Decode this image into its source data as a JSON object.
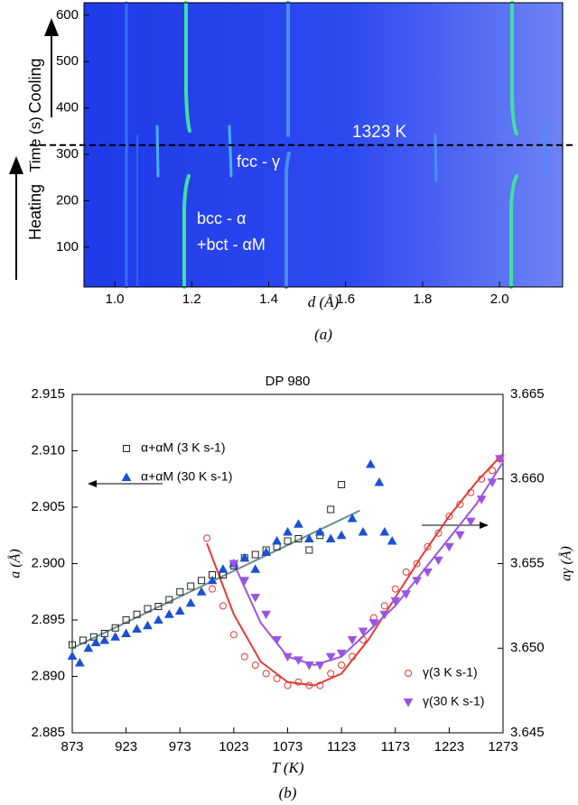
{
  "chart_data": [
    {
      "type": "image",
      "x_label": "d (Å)",
      "y_label": "Time (s)",
      "panel_label": "(a)",
      "xlim": [
        0.92,
        2.164
      ],
      "ylim": [
        14,
        627
      ],
      "xticks": [
        {
          "value": 1,
          "label": "1.0"
        },
        1.2,
        1.4,
        1.6,
        1.8,
        {
          "value": 2,
          "label": "2.0"
        }
      ],
      "yticks": [
        100,
        200,
        300,
        400,
        500,
        600
      ],
      "reference_line": {
        "y": 320,
        "label": "1323 K"
      },
      "annotations": [
        "Cooling",
        "Heating",
        "fcc - γ",
        "bcc - α",
        "+bct - αM"
      ]
    },
    {
      "type": "scatter",
      "title": "DP 980",
      "x_label": "T (K)",
      "y_label": "a (Å)",
      "y2_label": "aγ (Å)",
      "panel_label": "(b)",
      "xlim": [
        873,
        1273
      ],
      "xticks": [
        873,
        923,
        973,
        1023,
        1073,
        1123,
        1173,
        1223,
        1273
      ],
      "ylim": [
        2.885,
        2.915
      ],
      "yticks": [
        2.885,
        {
          "value": 2.89,
          "label": "2.890"
        },
        2.895,
        {
          "value": 2.9,
          "label": "2.900"
        },
        2.905,
        {
          "value": 2.91,
          "label": "2.910"
        },
        2.915
      ],
      "y2lim": [
        3.645,
        3.665
      ],
      "y2ticks": [
        3.645,
        {
          "value": 3.65,
          "label": "3.650"
        },
        3.655,
        {
          "value": 3.66,
          "label": "3.660"
        },
        3.665
      ],
      "series": [
        {
          "name": "α+αM (3 K s-1)",
          "color": "#222222",
          "marker": "square",
          "filled": false,
          "legend_loc": "upper left",
          "x": [
            873,
            883,
            893,
            903,
            913,
            923,
            933,
            943,
            953,
            963,
            973,
            983,
            993,
            1003,
            1013,
            1023,
            1033,
            1043,
            1053,
            1063,
            1073,
            1083,
            1093,
            1103,
            1113,
            1123
          ],
          "values": [
            2.8928,
            2.8932,
            2.8935,
            2.8938,
            2.8943,
            2.895,
            2.8955,
            2.896,
            2.8962,
            2.8968,
            2.8975,
            2.898,
            2.8985,
            2.899,
            2.899,
            2.8998,
            2.9005,
            2.9008,
            2.9012,
            2.9015,
            2.902,
            2.9022,
            2.9012,
            2.9025,
            2.9048,
            2.907
          ]
        },
        {
          "name": "α+αM (30 K s-1)",
          "color": "#1a4fd6",
          "marker": "triangle-up",
          "filled": true,
          "legend_loc": "upper left",
          "x": [
            873,
            880,
            888,
            895,
            903,
            913,
            923,
            933,
            943,
            953,
            963,
            973,
            983,
            993,
            1003,
            1013,
            1023,
            1033,
            1043,
            1053,
            1063,
            1073,
            1083,
            1093,
            1103,
            1113,
            1123,
            1133,
            1143,
            1150,
            1158,
            1163,
            1170
          ],
          "values": [
            2.8918,
            2.8912,
            2.8925,
            2.893,
            2.8932,
            2.8935,
            2.8938,
            2.8942,
            2.8945,
            2.895,
            2.8955,
            2.8958,
            2.8965,
            2.8975,
            2.8985,
            2.8995,
            2.9,
            2.9005,
            2.8995,
            2.901,
            2.902,
            2.9028,
            2.9035,
            2.9022,
            2.9028,
            2.9022,
            2.9025,
            2.904,
            2.9028,
            2.9088,
            2.9072,
            2.9028,
            2.902
          ]
        },
        {
          "name": "γ(3 K s-1)",
          "color": "#e53935",
          "marker": "circle",
          "filled": false,
          "axis": "y2",
          "legend_loc": "lower right",
          "x": [
            998,
            1003,
            1013,
            1023,
            1033,
            1043,
            1053,
            1063,
            1073,
            1083,
            1093,
            1103,
            1113,
            1123,
            1133,
            1143,
            1153,
            1163,
            1173,
            1183,
            1193,
            1203,
            1213,
            1223,
            1233,
            1243,
            1253,
            1263,
            1270
          ],
          "values": [
            3.6565,
            3.6535,
            3.6525,
            3.6508,
            3.6495,
            3.649,
            3.6485,
            3.6482,
            3.6478,
            3.648,
            3.6478,
            3.6478,
            3.6485,
            3.649,
            3.6495,
            3.6505,
            3.6518,
            3.6525,
            3.6535,
            3.6545,
            3.655,
            3.656,
            3.6568,
            3.6578,
            3.6585,
            3.6592,
            3.66,
            3.6605,
            3.6612
          ]
        },
        {
          "name": "γ(30 K s-1)",
          "color": "#9a55e0",
          "marker": "triangle-down",
          "filled": true,
          "axis": "y2",
          "legend_loc": "lower right",
          "x": [
            1023,
            1033,
            1043,
            1053,
            1063,
            1073,
            1083,
            1093,
            1103,
            1113,
            1123,
            1133,
            1143,
            1153,
            1163,
            1173,
            1183,
            1193,
            1203,
            1213,
            1223,
            1233,
            1243,
            1253,
            1263,
            1270
          ],
          "values": [
            3.655,
            3.654,
            3.653,
            3.652,
            3.6505,
            3.6495,
            3.6493,
            3.649,
            3.649,
            3.6495,
            3.6497,
            3.6505,
            3.651,
            3.6515,
            3.652,
            3.6528,
            3.6532,
            3.654,
            3.6545,
            3.6552,
            3.656,
            3.6567,
            3.6575,
            3.6588,
            3.6598,
            3.6612
          ]
        }
      ],
      "fits": [
        {
          "color": "#6b8e8e",
          "x": [
            873,
            1140
          ],
          "values": [
            2.8925,
            2.9047
          ]
        },
        {
          "color": "#e53935",
          "axis": "y2",
          "x": [
            998,
            1023,
            1048,
            1073,
            1098,
            1123,
            1148,
            1173,
            1198,
            1223,
            1248,
            1273
          ],
          "values": [
            3.6562,
            3.652,
            3.6492,
            3.648,
            3.6478,
            3.6485,
            3.6505,
            3.653,
            3.6555,
            3.6578,
            3.6598,
            3.6615
          ]
        },
        {
          "color": "#9a55e0",
          "axis": "y2",
          "x": [
            1023,
            1048,
            1073,
            1098,
            1123,
            1148,
            1173,
            1198,
            1223,
            1248,
            1273
          ],
          "values": [
            3.655,
            3.6515,
            3.6495,
            3.649,
            3.6495,
            3.651,
            3.6525,
            3.6545,
            3.6565,
            3.6585,
            3.661
          ]
        }
      ]
    }
  ]
}
